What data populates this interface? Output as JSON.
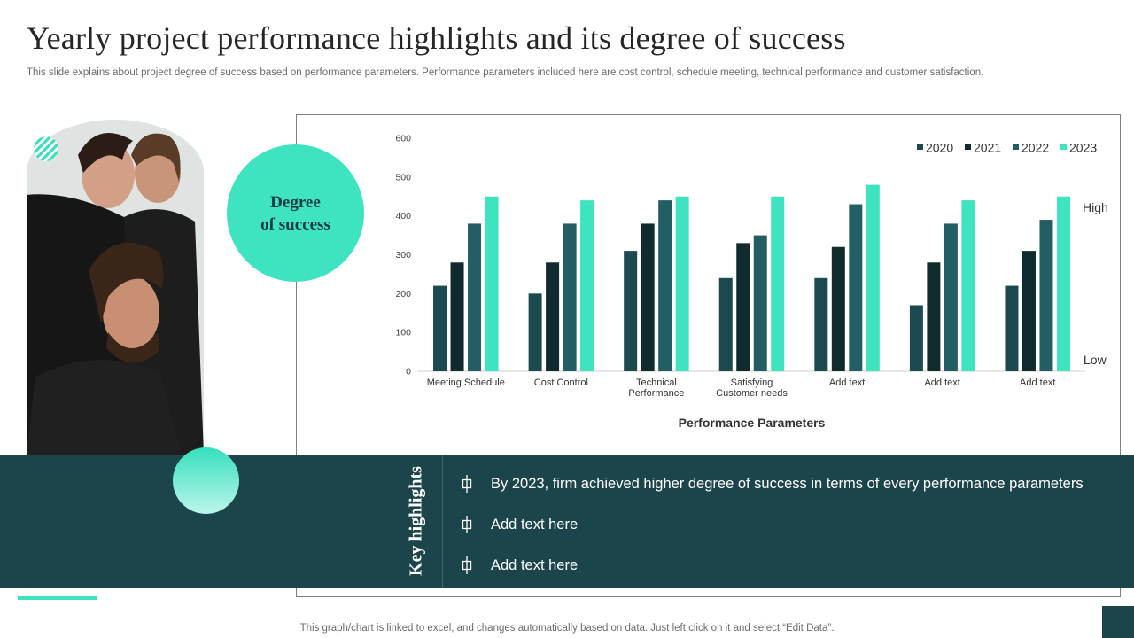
{
  "header": {
    "title": "Yearly project performance highlights and its degree of success",
    "subtitle": "This slide explains about project degree of success based on performance parameters. Performance parameters included here are cost control, schedule meeting, technical performance and customer satisfaction."
  },
  "badge": {
    "label": "Degree\nof success"
  },
  "highlights": {
    "heading": "Key highlights",
    "items": [
      "By 2023, firm achieved higher degree of success in terms of every performance parameters",
      "Add text here",
      "Add text here"
    ]
  },
  "footer": {
    "note": "This graph/chart is linked to excel,  and changes automatically based on data. Just left click on it and select “Edit Data”."
  },
  "colors": {
    "accent": "#3ee3c0",
    "dark_band": "#1c454b"
  },
  "chart_data": {
    "type": "bar",
    "title": "",
    "xlabel": "Performance Parameters",
    "ylabel": "",
    "ylim": [
      0,
      600
    ],
    "yticks": [
      0,
      100,
      200,
      300,
      400,
      500,
      600
    ],
    "categories": [
      "Meeting Schedule",
      "Cost Control",
      "Technical Performance",
      "Satisfying Customer needs",
      "Add text",
      "Add text",
      "Add text"
    ],
    "series": [
      {
        "name": "2020",
        "color": "#1d4a50",
        "values": [
          220,
          200,
          310,
          240,
          240,
          170,
          220
        ]
      },
      {
        "name": "2021",
        "color": "#0f2b2e",
        "values": [
          280,
          280,
          380,
          330,
          320,
          280,
          310
        ]
      },
      {
        "name": "2022",
        "color": "#225e63",
        "values": [
          380,
          380,
          440,
          350,
          430,
          380,
          390
        ]
      },
      {
        "name": "2023",
        "color": "#3ee3c0",
        "values": [
          450,
          440,
          450,
          450,
          480,
          440,
          450
        ]
      }
    ],
    "annotations": {
      "high": "High",
      "low": "Low"
    },
    "legend_position": "top-right",
    "grid": false
  }
}
